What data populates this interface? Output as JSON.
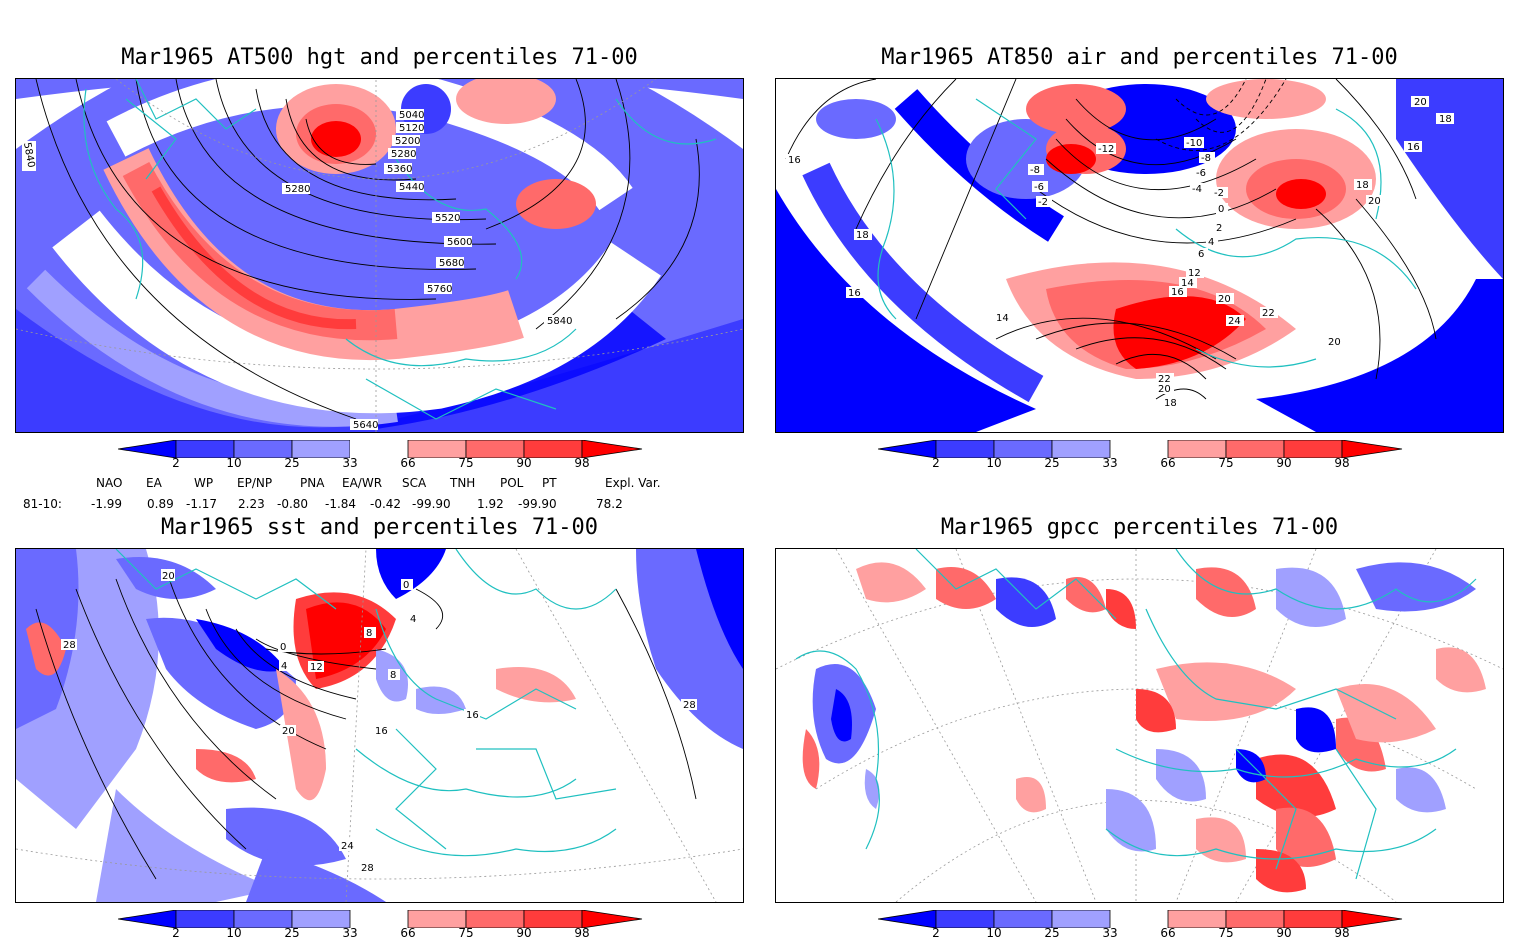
{
  "titles": {
    "tl": "Mar1965 AT500 hgt and percentiles 71-00",
    "tr": "Mar1965 AT850 air and percentiles 71-00",
    "bl": "Mar1965 sst and percentiles 71-00",
    "br": "Mar1965 gpcc percentiles 71-00"
  },
  "colorbar": {
    "labels": [
      "2",
      "10",
      "25",
      "33",
      "66",
      "75",
      "90",
      "98"
    ],
    "colors": [
      "#0000ff",
      "#3c3cff",
      "#6a6aff",
      "#a0a0ff",
      "#ffffff",
      "#ffa0a0",
      "#ff6a6a",
      "#ff3c3c",
      "#ff0000"
    ]
  },
  "indices": {
    "header": [
      "NAO",
      "EA",
      "WP",
      "EP/NP",
      "PNA",
      "EA/WR",
      "SCA",
      "TNH",
      "POL",
      "PT",
      "Expl. Var."
    ],
    "row_label": "81-10:",
    "values": [
      "-1.99",
      "0.89",
      "-1.17",
      "2.23",
      "-0.80",
      "-1.84",
      "-0.42",
      "-99.90",
      "1.92",
      "-99.90",
      "78.2"
    ]
  },
  "contour_labels": {
    "tl": [
      "5040",
      "5120",
      "5200",
      "5280",
      "5360",
      "5440",
      "5520",
      "5600",
      "5680",
      "5760",
      "5840",
      "5840",
      "5640",
      "5280"
    ],
    "tr": [
      "20",
      "18",
      "16",
      "-10",
      "-8",
      "-6",
      "-4",
      "-2",
      "0",
      "2",
      "4",
      "6",
      "12",
      "14",
      "16",
      "20",
      "24",
      "22",
      "22",
      "20",
      "18",
      "14",
      "18",
      "16",
      "16",
      "-8",
      "-6",
      "-2",
      "-12",
      "18",
      "20",
      "20"
    ],
    "bl": [
      "20",
      "28",
      "0",
      "4",
      "8",
      "12",
      "16",
      "20",
      "24",
      "28",
      "16",
      "28",
      "8",
      "4",
      "0"
    ]
  },
  "map_data": {
    "projection": "polar stereographic, northern hemisphere",
    "land_outline_color": "#20c0c0",
    "graticule": "dotted"
  }
}
